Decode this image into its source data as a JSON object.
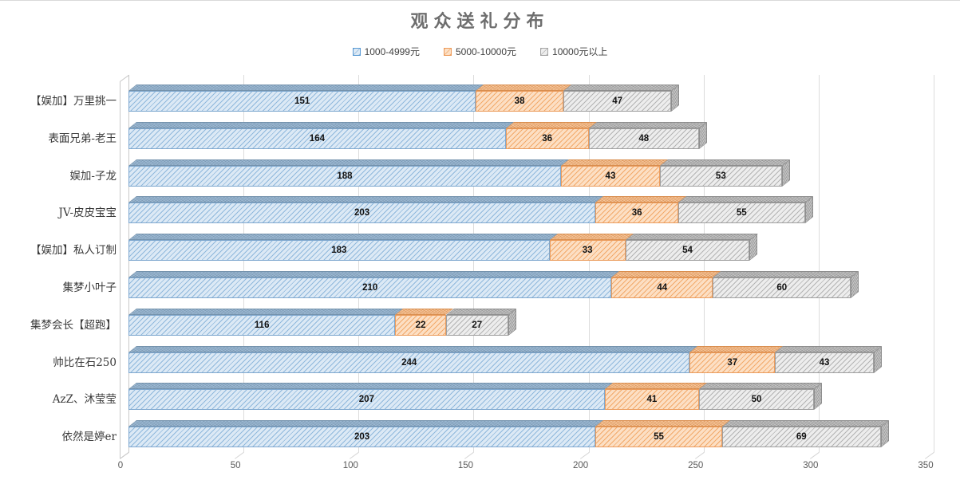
{
  "title": "观众送礼分布",
  "legend": [
    {
      "label": "1000-4999元",
      "color": "#5b9bd5"
    },
    {
      "label": "5000-10000元",
      "color": "#ed7d31"
    },
    {
      "label": "10000元以上",
      "color": "#a6a6a6"
    }
  ],
  "chart_data": {
    "type": "bar",
    "orientation": "horizontal",
    "stacked": true,
    "style": "3d-hatched",
    "title": "观众送礼分布",
    "categories": [
      "【娱加】万里挑一",
      "表面兄弟-老王",
      "娱加-子龙",
      "JV-皮皮宝宝",
      "【娱加】私人订制",
      "集梦小叶子",
      "集梦会长【超跑】",
      "帅比在石250",
      "AzZ、沐莹莹",
      "依然是婷er"
    ],
    "series": [
      {
        "name": "1000-4999元",
        "values": [
          151,
          164,
          188,
          203,
          183,
          210,
          116,
          244,
          207,
          203
        ]
      },
      {
        "name": "5000-10000元",
        "values": [
          38,
          36,
          43,
          36,
          33,
          44,
          22,
          37,
          41,
          55
        ]
      },
      {
        "name": "10000元以上",
        "values": [
          47,
          48,
          53,
          55,
          54,
          60,
          27,
          43,
          50,
          69
        ]
      }
    ],
    "xlim": [
      0,
      350
    ],
    "x_ticks": [
      0,
      50,
      100,
      150,
      200,
      250,
      300,
      350
    ],
    "grid": true,
    "legend_position": "top",
    "data_labels": true,
    "series_styles": [
      {
        "fill": "#dce9f5",
        "line": "#8fb8dc",
        "border": "#7fa8cf",
        "top_fill": "#9db9d3",
        "top_line": "#7593ad"
      },
      {
        "fill": "#fcdfc4",
        "line": "#f2a969",
        "border": "#eb9c5d",
        "top_fill": "#f5c59b",
        "top_line": "#d98e4f"
      },
      {
        "fill": "#ededed",
        "line": "#b3b3b3",
        "border": "#9f9f9f",
        "top_fill": "#c2c2c2",
        "top_line": "#8e8e8e"
      }
    ],
    "end_cap": {
      "fill": "#c6c6c6",
      "border": "#8e8e8e"
    }
  }
}
